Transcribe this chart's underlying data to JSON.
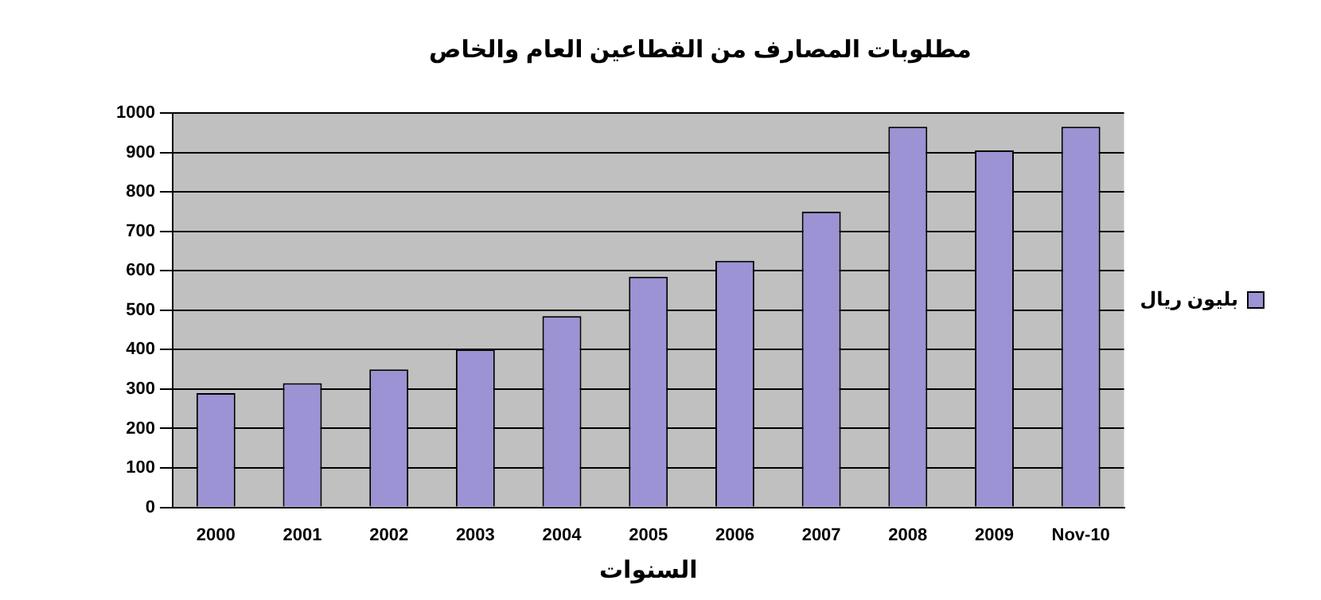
{
  "chart_data": {
    "type": "bar",
    "title": "مطلوبات المصارف من القطاعين العام والخاص",
    "xlabel": "السنوات",
    "categories": [
      "2000",
      "2001",
      "2002",
      "2003",
      "2004",
      "2005",
      "2006",
      "2007",
      "2008",
      "2009",
      "Nov-10"
    ],
    "series": [
      {
        "name": "بليون ريال",
        "color": "#9b93d3",
        "values": [
          290,
          315,
          350,
          400,
          485,
          585,
          625,
          750,
          965,
          905,
          965
        ]
      }
    ],
    "ylim": [
      0,
      1000
    ],
    "yticks": [
      0,
      100,
      200,
      300,
      400,
      500,
      600,
      700,
      800,
      900,
      1000
    ],
    "grid": "y",
    "legend": "right"
  }
}
